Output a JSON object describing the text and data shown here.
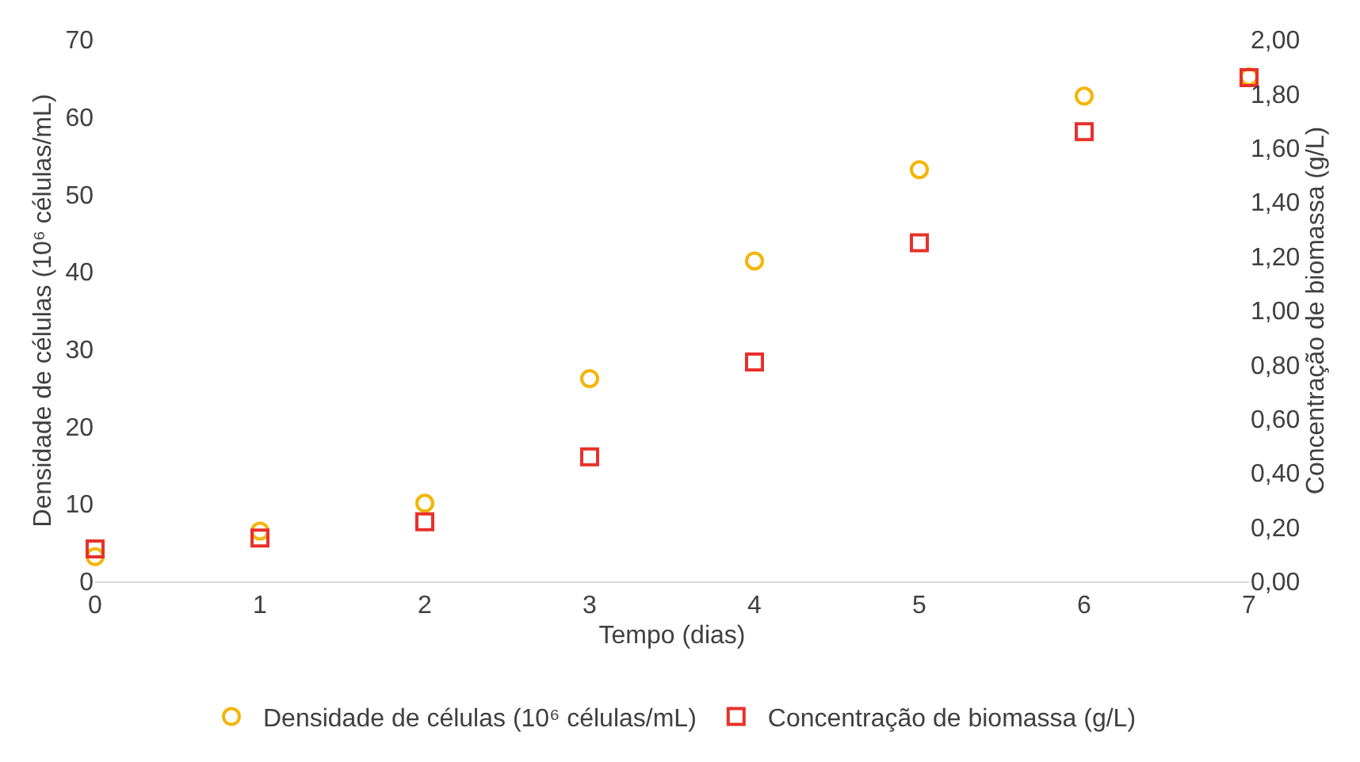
{
  "chart_data": {
    "type": "scatter",
    "xlabel": "Tempo (dias)",
    "ylabel": "Densidade de células (10⁶ células/mL)",
    "y2label": "Concentração de biomassa (g/L)",
    "x": [
      0,
      1,
      2,
      3,
      4,
      5,
      6,
      7
    ],
    "series": [
      {
        "name": "Densidade de células (10⁶ células/mL)",
        "color": "#f5b400",
        "marker": "circle",
        "values": [
          3.2,
          6.5,
          10.1,
          26.2,
          41.4,
          53.2,
          62.7,
          65.2
        ]
      },
      {
        "name": "Concentração de biomassa (g/L)",
        "color": "#e8302a",
        "marker": "square",
        "axis": "y2",
        "values": [
          0.12,
          0.16,
          0.22,
          0.46,
          0.81,
          1.25,
          1.66,
          1.86
        ]
      }
    ],
    "xlim": [
      0,
      7
    ],
    "xticks": [
      0,
      1,
      2,
      3,
      4,
      5,
      6,
      7
    ],
    "ylim": [
      0,
      70
    ],
    "yticks": [
      0,
      10,
      20,
      30,
      40,
      50,
      60,
      70
    ],
    "y2lim": [
      0,
      2
    ],
    "y2ticks": [
      {
        "value": 0,
        "label": "0,00"
      },
      {
        "value": 0.2,
        "label": "0,20"
      },
      {
        "value": 0.4,
        "label": "0,40"
      },
      {
        "value": 0.6,
        "label": "0,60"
      },
      {
        "value": 0.8,
        "label": "0,80"
      },
      {
        "value": 1.0,
        "label": "1,00"
      },
      {
        "value": 1.2,
        "label": "1,20"
      },
      {
        "value": 1.4,
        "label": "1,40"
      },
      {
        "value": 1.6,
        "label": "1,60"
      },
      {
        "value": 1.8,
        "label": "1,80"
      },
      {
        "value": 2.0,
        "label": "2,00"
      }
    ],
    "legend": "bottom",
    "grid": false
  }
}
